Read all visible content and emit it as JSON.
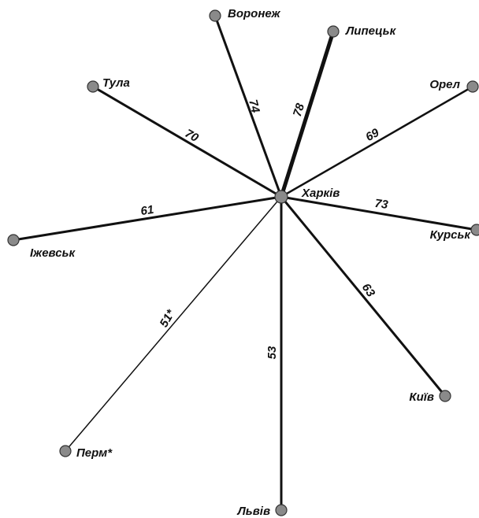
{
  "center": {
    "label": "Харків"
  },
  "nodes": [
    {
      "label": "Воронеж",
      "edge": "74"
    },
    {
      "label": "Липецьк",
      "edge": "78"
    },
    {
      "label": "Тула",
      "edge": "70"
    },
    {
      "label": "Орел",
      "edge": "69"
    },
    {
      "label": "Іжевськ",
      "edge": "61"
    },
    {
      "label": "Курськ",
      "edge": "73"
    },
    {
      "label": "Київ",
      "edge": "63"
    },
    {
      "label": "Перм*",
      "edge": "51*"
    },
    {
      "label": "Львів",
      "edge": "53"
    }
  ]
}
